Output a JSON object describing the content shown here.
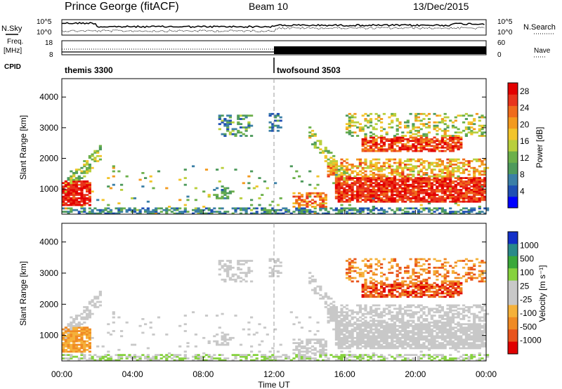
{
  "header": {
    "title": "Prince George (fitACF)",
    "beam": "Beam 10",
    "date": "13/Dec/2015"
  },
  "left_labels": {
    "nsky": "N.Sky",
    "freq": "Freq.",
    "freq_unit": "[MHz]",
    "cpid": "CPID"
  },
  "right_labels": {
    "nsearch": "N.Search",
    "nave": "Nave"
  },
  "panels": {
    "noise": {
      "left_ticks": [
        "10^5",
        "10^0"
      ],
      "right_ticks": [
        "10^5",
        "10^0"
      ]
    },
    "freq": {
      "left_ticks": [
        "18",
        "8"
      ],
      "right_ticks": [
        "60",
        "0"
      ]
    },
    "cpid": {
      "modes": [
        {
          "name": "themis 3300",
          "start_hour": 0
        },
        {
          "name": "twofsound 3503",
          "start_hour": 12
        }
      ]
    }
  },
  "time_axis": {
    "label": "Time UT",
    "ticks": [
      "00:00",
      "04:00",
      "08:00",
      "12:00",
      "16:00",
      "20:00",
      "00:00"
    ],
    "range_hours": [
      0,
      24
    ]
  },
  "colors": {
    "power": [
      "#0000ff",
      "#1f4fb4",
      "#3b7fa6",
      "#4e9a5c",
      "#6cb04a",
      "#b9cf3c",
      "#f2c42a",
      "#f39a1e",
      "#ef6b1c",
      "#e8341c",
      "#e30000"
    ],
    "velocity": [
      "#1330c8",
      "#2a8a8a",
      "#3aa83a",
      "#86d23e",
      "#c8c8c8",
      "#c8c8c8",
      "#f5b13a",
      "#f08a24",
      "#e8541c",
      "#e00000"
    ]
  },
  "chart_data": [
    {
      "type": "heatmap",
      "name": "power",
      "ylabel": "Slant Range [km]",
      "xlabel": "",
      "yticks": [
        1000,
        2000,
        3000,
        4000
      ],
      "ylim": [
        180,
        4600
      ],
      "xlim": [
        0,
        24
      ],
      "colorbar": {
        "label": "Power [dB]",
        "ticks": [
          "4",
          "8",
          "12",
          "16",
          "20",
          "24",
          "28"
        ],
        "range": [
          0,
          30
        ]
      }
    },
    {
      "type": "heatmap",
      "name": "velocity",
      "ylabel": "Slant Range [km]",
      "xlabel": "Time UT",
      "yticks": [
        1000,
        2000,
        3000,
        4000
      ],
      "ylim": [
        180,
        4600
      ],
      "xlim": [
        0,
        24
      ],
      "colorbar": {
        "label": "Velocity [m s⁻¹]",
        "ticks": [
          "1000",
          "500",
          "100",
          "25",
          "-25",
          "-100",
          "-500",
          "-1000"
        ]
      }
    }
  ]
}
